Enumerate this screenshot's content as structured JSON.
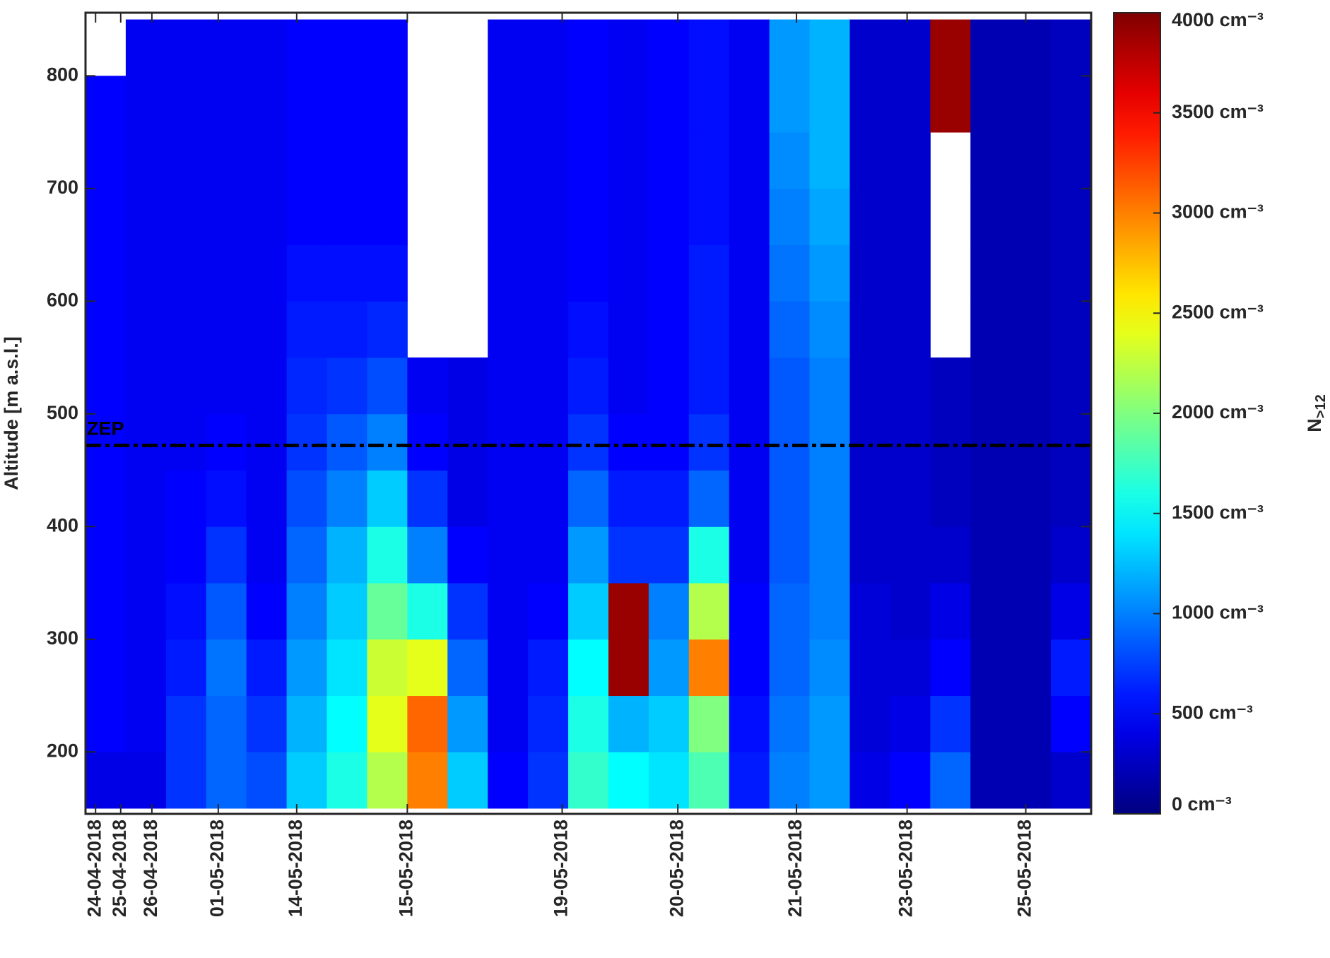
{
  "chart_data": {
    "type": "heatmap",
    "y_label": "Altitude [m a.s.l.]",
    "colorbar_label": {
      "main": "N",
      "sub": ">12"
    },
    "x": [
      2,
      6,
      10,
      14,
      18,
      22,
      26,
      30,
      34,
      38,
      42,
      46,
      50,
      54,
      58,
      62,
      66,
      70,
      74,
      78,
      82,
      86,
      90,
      94,
      98
    ],
    "y": [
      175,
      225,
      275,
      325,
      375,
      425,
      475,
      525,
      575,
      625,
      675,
      725,
      775,
      825
    ],
    "z": [
      [
        400,
        500,
        500,
        500,
        500,
        500,
        500,
        500,
        500,
        500,
        500,
        500,
        500,
        null
      ],
      [
        400,
        450,
        450,
        450,
        450,
        450,
        450,
        450,
        450,
        450,
        450,
        450,
        450,
        450
      ],
      [
        700,
        700,
        600,
        550,
        500,
        500,
        450,
        450,
        450,
        450,
        450,
        450,
        450,
        450
      ],
      [
        900,
        900,
        950,
        850,
        700,
        550,
        500,
        450,
        450,
        450,
        450,
        450,
        450,
        450
      ],
      [
        800,
        700,
        600,
        500,
        450,
        450,
        450,
        450,
        450,
        450,
        450,
        450,
        450,
        450
      ],
      [
        1300,
        1200,
        1100,
        1000,
        900,
        800,
        700,
        650,
        600,
        550,
        500,
        500,
        500,
        500
      ],
      [
        1600,
        1500,
        1400,
        1300,
        1200,
        1000,
        850,
        700,
        600,
        550,
        500,
        500,
        500,
        500
      ],
      [
        2200,
        2400,
        2300,
        1900,
        1600,
        1300,
        1000,
        800,
        650,
        550,
        500,
        500,
        500,
        500
      ],
      [
        3000,
        3100,
        2400,
        1600,
        1000,
        700,
        500,
        450,
        null,
        null,
        null,
        null,
        null,
        null
      ],
      [
        1300,
        1100,
        900,
        700,
        500,
        400,
        400,
        400,
        null,
        null,
        null,
        null,
        null,
        null
      ],
      [
        500,
        450,
        450,
        450,
        450,
        450,
        450,
        450,
        450,
        450,
        450,
        450,
        450,
        450
      ],
      [
        700,
        650,
        600,
        500,
        450,
        450,
        450,
        450,
        450,
        450,
        450,
        450,
        450,
        450
      ],
      [
        1700,
        1600,
        1500,
        1300,
        1100,
        900,
        700,
        600,
        550,
        500,
        500,
        500,
        500,
        500
      ],
      [
        1500,
        1200,
        3900,
        3900,
        700,
        600,
        500,
        450,
        450,
        450,
        450,
        450,
        450,
        450
      ],
      [
        1400,
        1300,
        1100,
        1000,
        700,
        600,
        500,
        500,
        500,
        500,
        500,
        500,
        500,
        500
      ],
      [
        1800,
        2000,
        3000,
        2200,
        1600,
        900,
        700,
        600,
        600,
        600,
        550,
        550,
        550,
        550
      ],
      [
        600,
        550,
        500,
        500,
        450,
        450,
        450,
        450,
        450,
        450,
        450,
        450,
        450,
        450
      ],
      [
        1000,
        950,
        900,
        900,
        850,
        850,
        850,
        850,
        900,
        950,
        1000,
        1050,
        1100,
        1100
      ],
      [
        1100,
        1100,
        1050,
        1000,
        1000,
        1000,
        1000,
        1000,
        1050,
        1100,
        1150,
        1200,
        1200,
        1200
      ],
      [
        400,
        350,
        350,
        350,
        300,
        300,
        300,
        300,
        300,
        300,
        300,
        300,
        300,
        300
      ],
      [
        500,
        400,
        350,
        300,
        300,
        300,
        300,
        300,
        300,
        300,
        300,
        300,
        300,
        300
      ],
      [
        900,
        700,
        500,
        400,
        300,
        250,
        250,
        250,
        null,
        null,
        null,
        null,
        3900,
        3900
      ],
      [
        200,
        200,
        200,
        200,
        200,
        200,
        200,
        200,
        200,
        200,
        200,
        200,
        200,
        200
      ],
      [
        200,
        200,
        200,
        200,
        200,
        200,
        200,
        200,
        200,
        200,
        200,
        200,
        200,
        200
      ],
      [
        300,
        500,
        600,
        400,
        300,
        250,
        250,
        250,
        250,
        250,
        250,
        250,
        250,
        250
      ]
    ],
    "cell_width": 4,
    "cell_height": 50,
    "xlim": [
      0,
      100
    ],
    "ylim": [
      145,
      856
    ],
    "xticks": [
      {
        "value": 1.0,
        "label": "24-04-2018"
      },
      {
        "value": 3.5,
        "label": "25-04-2018"
      },
      {
        "value": 6.6,
        "label": "26-04-2018"
      },
      {
        "value": 13.2,
        "label": "01-05-2018"
      },
      {
        "value": 21.0,
        "label": "14-05-2018"
      },
      {
        "value": 32.0,
        "label": "15-05-2018"
      },
      {
        "value": 47.4,
        "label": "19-05-2018"
      },
      {
        "value": 58.9,
        "label": "20-05-2018"
      },
      {
        "value": 70.7,
        "label": "21-05-2018"
      },
      {
        "value": 81.7,
        "label": "23-05-2018"
      },
      {
        "value": 93.5,
        "label": "25-05-2018"
      }
    ],
    "yticks": [
      200,
      300,
      400,
      500,
      600,
      700,
      800
    ],
    "clim": [
      0,
      4000
    ],
    "colormap": "jet",
    "cticks": [
      {
        "value": 0,
        "label": "0 cm⁻³"
      },
      {
        "value": 500,
        "label": "500 cm⁻³"
      },
      {
        "value": 1000,
        "label": "1000 cm⁻³"
      },
      {
        "value": 1500,
        "label": "1500 cm⁻³"
      },
      {
        "value": 2000,
        "label": "2000 cm⁻³"
      },
      {
        "value": 2500,
        "label": "2500 cm⁻³"
      },
      {
        "value": 3000,
        "label": "3000 cm⁻³"
      },
      {
        "value": 3500,
        "label": "3500 cm⁻³"
      },
      {
        "value": 4000,
        "label": "4000 cm⁻³"
      }
    ],
    "reference_lines": [
      {
        "value": 472,
        "label": "ZEP",
        "color": "#000000"
      }
    ]
  }
}
